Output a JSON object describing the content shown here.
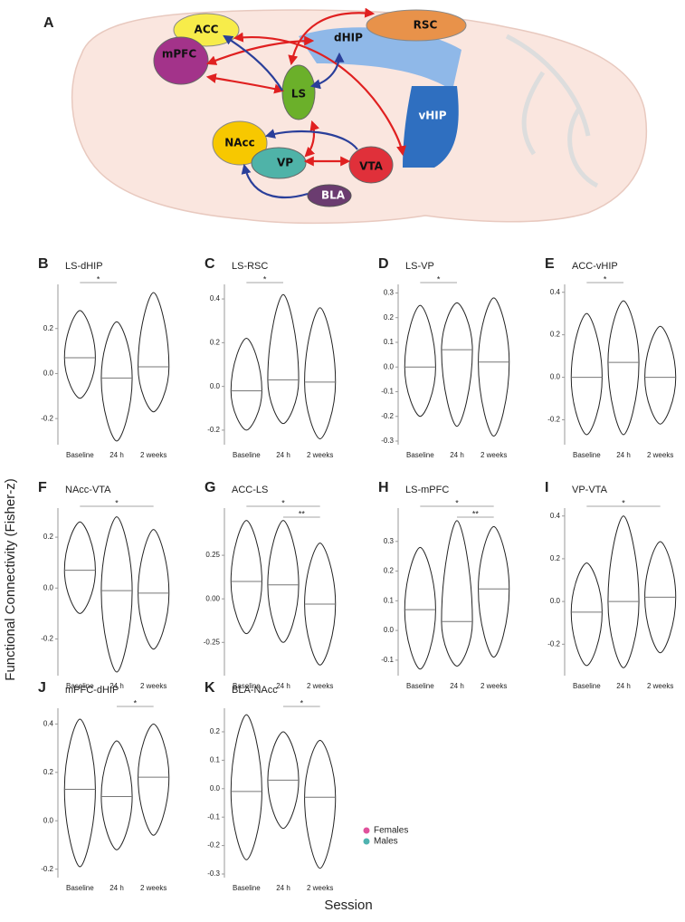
{
  "diagram": {
    "label": "A",
    "nodes": [
      {
        "label": "ACC"
      },
      {
        "label": "mPFC"
      },
      {
        "label": "RSC"
      },
      {
        "label": "dHIP"
      },
      {
        "label": "LS"
      },
      {
        "label": "vHIP"
      },
      {
        "label": "NAcc"
      },
      {
        "label": "VP"
      },
      {
        "label": "VTA"
      },
      {
        "label": "BLA"
      }
    ]
  },
  "figure": {
    "ylabel": "Functional Connectivity (Fisher-z)",
    "xlabel": "Session",
    "legend": [
      {
        "name": "Females",
        "color": "#e0529c"
      },
      {
        "name": "Males",
        "color": "#4fb3b0"
      }
    ]
  },
  "chart_data": [
    {
      "type": "violin",
      "label": "B",
      "title": "LS-dHIP",
      "categories": [
        "Baseline",
        "24 h",
        "2 weeks"
      ],
      "ylim": [
        -0.3,
        0.38
      ],
      "yticks": [
        -0.2,
        {
          "value": 0,
          "label": "0.0"
        },
        0.2
      ],
      "groups": [
        {
          "min": -0.11,
          "median": 0.07,
          "max": 0.28
        },
        {
          "min": -0.3,
          "median": -0.02,
          "max": 0.23
        },
        {
          "min": -0.17,
          "median": 0.03,
          "max": 0.36
        }
      ],
      "significance": [
        {
          "pair": [
            "Baseline",
            "24 h"
          ],
          "label": "*"
        }
      ]
    },
    {
      "type": "violin",
      "label": "C",
      "title": "LS-RSC",
      "categories": [
        "Baseline",
        "24 h",
        "2 weeks"
      ],
      "ylim": [
        -0.25,
        0.45
      ],
      "yticks": [
        -0.2,
        {
          "value": 0,
          "label": "0.0"
        },
        0.2,
        0.4
      ],
      "groups": [
        {
          "min": -0.2,
          "median": -0.02,
          "max": 0.22
        },
        {
          "min": -0.17,
          "median": 0.03,
          "max": 0.42
        },
        {
          "min": -0.24,
          "median": 0.02,
          "max": 0.36
        }
      ],
      "significance": [
        {
          "pair": [
            "Baseline",
            "24 h"
          ],
          "label": "*"
        }
      ]
    },
    {
      "type": "violin",
      "label": "D",
      "title": "LS-VP",
      "categories": [
        "Baseline",
        "24 h",
        "2 weeks"
      ],
      "ylim": [
        -0.3,
        0.32
      ],
      "yticks": [
        -0.3,
        -0.2,
        -0.1,
        {
          "value": 0,
          "label": "0.0"
        },
        0.1,
        0.2,
        0.3
      ],
      "groups": [
        {
          "min": -0.2,
          "median": 0,
          "max": 0.25
        },
        {
          "min": -0.24,
          "median": 0.07,
          "max": 0.26
        },
        {
          "min": -0.28,
          "median": 0.02,
          "max": 0.28
        }
      ],
      "significance": [
        {
          "pair": [
            "Baseline",
            "24 h"
          ],
          "label": "*"
        }
      ]
    },
    {
      "type": "violin",
      "label": "E",
      "title": "ACC-vHIP",
      "categories": [
        "Baseline",
        "24 h",
        "2 weeks"
      ],
      "ylim": [
        -0.3,
        0.42
      ],
      "yticks": [
        -0.2,
        {
          "value": 0,
          "label": "0.0"
        },
        0.2,
        0.4
      ],
      "groups": [
        {
          "min": -0.27,
          "median": 0,
          "max": 0.3
        },
        {
          "min": -0.27,
          "median": 0.07,
          "max": 0.36
        },
        {
          "min": -0.22,
          "median": 0,
          "max": 0.24
        }
      ],
      "significance": [
        {
          "pair": [
            "Baseline",
            "24 h"
          ],
          "label": "*"
        }
      ]
    },
    {
      "type": "violin",
      "label": "F",
      "title": "NAcc-VTA",
      "categories": [
        "Baseline",
        "24 h",
        "2 weeks"
      ],
      "ylim": [
        -0.33,
        0.3
      ],
      "yticks": [
        -0.2,
        {
          "value": 0,
          "label": "0.0"
        },
        0.2
      ],
      "groups": [
        {
          "min": -0.1,
          "median": 0.07,
          "max": 0.26
        },
        {
          "min": -0.33,
          "median": -0.01,
          "max": 0.28
        },
        {
          "min": -0.24,
          "median": -0.02,
          "max": 0.23
        }
      ],
      "significance": [
        {
          "pair": [
            "Baseline",
            "2 weeks"
          ],
          "label": "*"
        }
      ]
    },
    {
      "type": "violin",
      "label": "G",
      "title": "ACC-LS",
      "categories": [
        "Baseline",
        "24 h",
        "2 weeks"
      ],
      "ylim": [
        -0.42,
        0.5
      ],
      "yticks": [
        -0.25,
        {
          "value": 0,
          "label": "0.00"
        },
        0.25
      ],
      "groups": [
        {
          "min": -0.2,
          "median": 0.1,
          "max": 0.45
        },
        {
          "min": -0.25,
          "median": 0.08,
          "max": 0.45
        },
        {
          "min": -0.38,
          "median": -0.03,
          "max": 0.32
        }
      ],
      "significance": [
        {
          "pair": [
            "Baseline",
            "2 weeks"
          ],
          "label": "*"
        },
        {
          "pair": [
            "24 h",
            "2 weeks"
          ],
          "label": "**"
        }
      ]
    },
    {
      "type": "violin",
      "label": "H",
      "title": "LS-mPFC",
      "categories": [
        "Baseline",
        "24 h",
        "2 weeks"
      ],
      "ylim": [
        -0.14,
        0.4
      ],
      "yticks": [
        -0.1,
        {
          "value": 0,
          "label": "0.0"
        },
        0.1,
        0.2,
        0.3
      ],
      "groups": [
        {
          "min": -0.13,
          "median": 0.07,
          "max": 0.28
        },
        {
          "min": -0.12,
          "median": 0.03,
          "max": 0.37
        },
        {
          "min": -0.09,
          "median": 0.14,
          "max": 0.35
        }
      ],
      "significance": [
        {
          "pair": [
            "Baseline",
            "2 weeks"
          ],
          "label": "*"
        },
        {
          "pair": [
            "24 h",
            "2 weeks"
          ],
          "label": "**"
        }
      ]
    },
    {
      "type": "violin",
      "label": "I",
      "title": "VP-VTA",
      "categories": [
        "Baseline",
        "24 h",
        "2 weeks"
      ],
      "ylim": [
        -0.33,
        0.42
      ],
      "yticks": [
        -0.2,
        {
          "value": 0,
          "label": "0.0"
        },
        0.2,
        0.4
      ],
      "groups": [
        {
          "min": -0.3,
          "median": -0.05,
          "max": 0.18
        },
        {
          "min": -0.31,
          "median": 0,
          "max": 0.4
        },
        {
          "min": -0.24,
          "median": 0.02,
          "max": 0.28
        }
      ],
      "significance": [
        {
          "pair": [
            "Baseline",
            "2 weeks"
          ],
          "label": "*"
        }
      ]
    },
    {
      "type": "violin",
      "label": "J",
      "title": "mPFC-dHIP",
      "categories": [
        "Baseline",
        "24 h",
        "2 weeks"
      ],
      "ylim": [
        -0.22,
        0.45
      ],
      "yticks": [
        -0.2,
        {
          "value": 0,
          "label": "0.0"
        },
        0.2,
        0.4
      ],
      "groups": [
        {
          "min": -0.19,
          "median": 0.13,
          "max": 0.42
        },
        {
          "min": -0.12,
          "median": 0.1,
          "max": 0.33
        },
        {
          "min": -0.06,
          "median": 0.18,
          "max": 0.4
        }
      ],
      "significance": [
        {
          "pair": [
            "24 h",
            "2 weeks"
          ],
          "label": "*"
        }
      ]
    },
    {
      "type": "violin",
      "label": "K",
      "title": "BLA-NAcc",
      "categories": [
        "Baseline",
        "24 h",
        "2 weeks"
      ],
      "ylim": [
        -0.3,
        0.27
      ],
      "yticks": [
        -0.3,
        -0.2,
        -0.1,
        {
          "value": 0,
          "label": "0.0"
        },
        0.1,
        0.2
      ],
      "groups": [
        {
          "min": -0.25,
          "median": -0.01,
          "max": 0.26
        },
        {
          "min": -0.14,
          "median": 0.03,
          "max": 0.2
        },
        {
          "min": -0.28,
          "median": -0.03,
          "max": 0.17
        }
      ],
      "significance": [
        {
          "pair": [
            "24 h",
            "2 weeks"
          ],
          "label": "*"
        }
      ]
    }
  ]
}
